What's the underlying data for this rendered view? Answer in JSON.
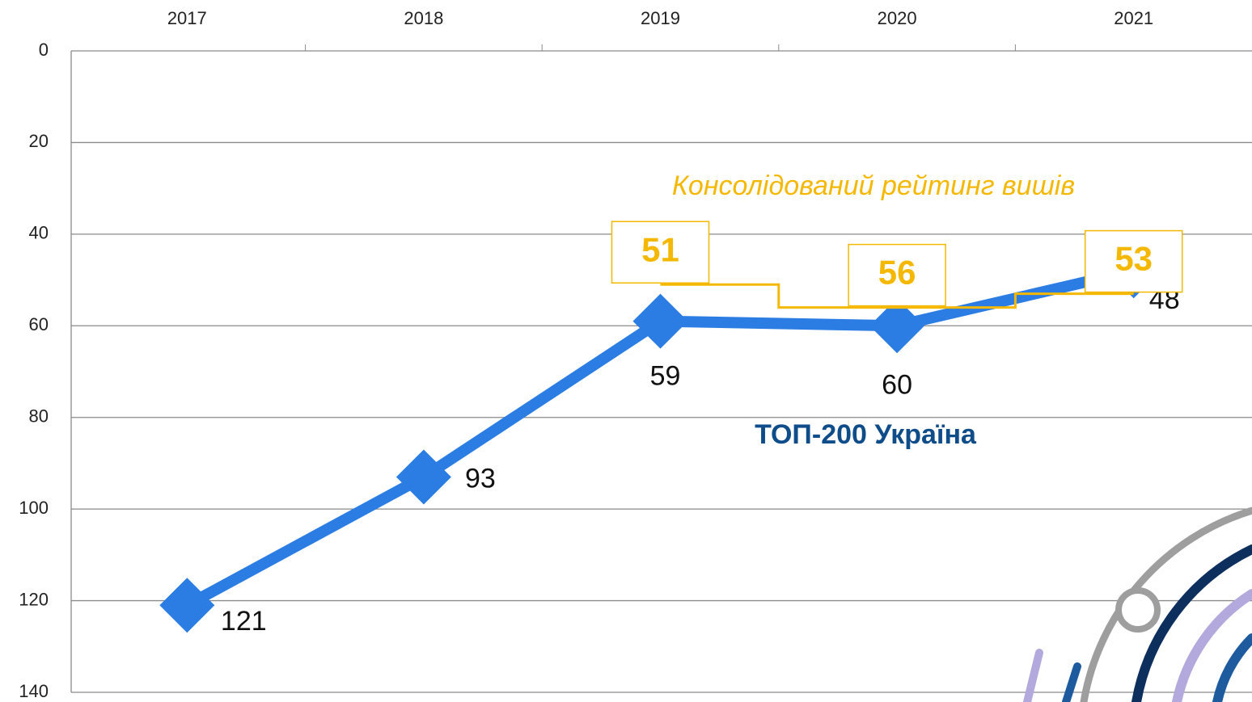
{
  "chart_data": {
    "type": "line",
    "categories": [
      "2017",
      "2018",
      "2019",
      "2020",
      "2021"
    ],
    "series": [
      {
        "name": "ТОП-200 Україна",
        "color": "#2b7de3",
        "values": [
          121,
          93,
          59,
          60,
          48
        ]
      },
      {
        "name": "Консолідований рейтинг вишів",
        "color": "#f5b800",
        "values": [
          null,
          null,
          51,
          56,
          53
        ]
      }
    ],
    "ylim": [
      0,
      140
    ],
    "yticks": [
      0,
      20,
      40,
      60,
      80,
      100,
      120,
      140
    ],
    "y_inverted": true,
    "grid": true
  }
}
